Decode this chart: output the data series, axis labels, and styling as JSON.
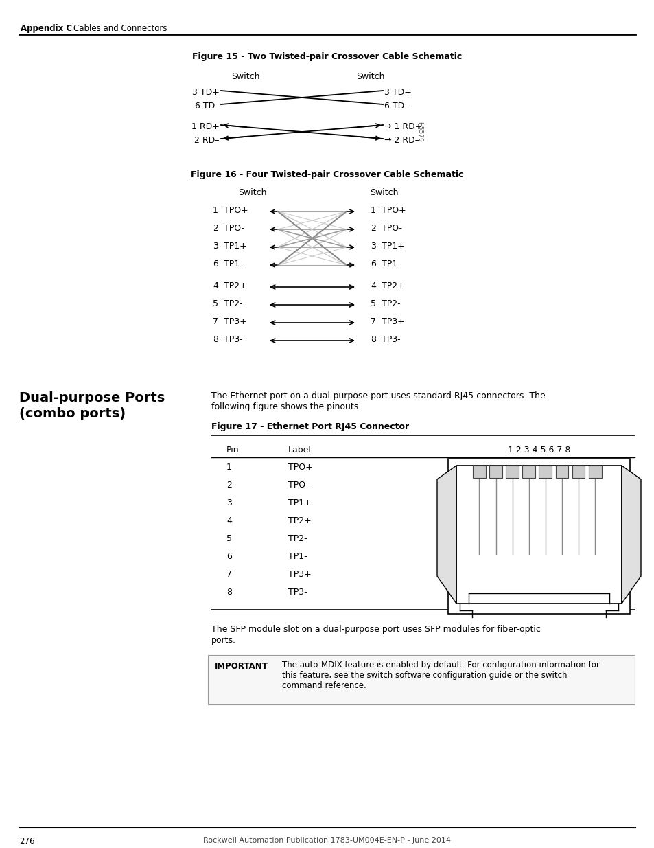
{
  "page_title_bold": "Appendix C",
  "page_title_normal": "Cables and Connectors",
  "fig15_title": "Figure 15 - Two Twisted-pair Crossover Cable Schematic",
  "fig16_title": "Figure 16 - Four Twisted-pair Crossover Cable Schematic",
  "fig17_title": "Figure 17 - Ethernet Port RJ45 Connector",
  "section_title_line1": "Dual-purpose Ports",
  "section_title_line2": "(combo ports)",
  "body_line1": "The Ethernet port on a dual-purpose port uses standard RJ45 connectors. The",
  "body_line2": "following figure shows the pinouts.",
  "tbl_pin": "Pin",
  "tbl_label": "Label",
  "tbl_pins_hdr": "1 2 3 4 5 6 7 8",
  "tbl_rows": [
    [
      "1",
      "TPO+"
    ],
    [
      "2",
      "TPO-"
    ],
    [
      "3",
      "TP1+"
    ],
    [
      "4",
      "TP2+"
    ],
    [
      "5",
      "TP2-"
    ],
    [
      "6",
      "TP1-"
    ],
    [
      "7",
      "TP3+"
    ],
    [
      "8",
      "TP3-"
    ]
  ],
  "sfp_line1": "The SFP module slot on a dual-purpose port uses SFP modules for fiber-optic",
  "sfp_line2": "ports.",
  "imp_label": "IMPORTANT",
  "imp_line1": "The auto-MDIX feature is enabled by default. For configuration information for",
  "imp_line2": "this feature, see the switch software configuration guide or the switch",
  "imp_line3": "command reference.",
  "footer_num": "276",
  "footer_center": "Rockwell Automation Publication 1783-UM004E-EN-P - June 2014"
}
